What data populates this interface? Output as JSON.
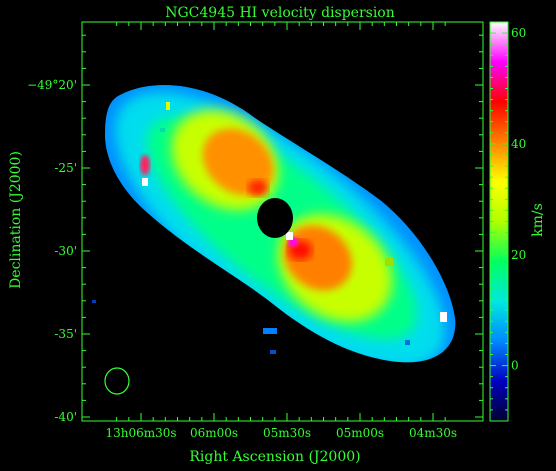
{
  "chart_data": {
    "type": "heatmap",
    "title": "NGC4945   HI velocity dispersion",
    "xlabel": "Right Ascension (J2000)",
    "ylabel": "Declination (J2000)",
    "colorbar_label": "km/s",
    "x_ticks": [
      {
        "label": "13h06m30s",
        "ra_sec": 390
      },
      {
        "label": "06m00s",
        "ra_sec": 360
      },
      {
        "label": "05m30s",
        "ra_sec": 330
      },
      {
        "label": "05m00s",
        "ra_sec": 300
      },
      {
        "label": "04m30s",
        "ra_sec": 270
      }
    ],
    "y_ticks": [
      {
        "label": "−49°20'",
        "dec_arcmin": -20
      },
      {
        "label": "-25'",
        "dec_arcmin": -25
      },
      {
        "label": "-30'",
        "dec_arcmin": -30
      },
      {
        "label": "-35'",
        "dec_arcmin": -35
      },
      {
        "label": "-40'",
        "dec_arcmin": -40
      }
    ],
    "colorbar_ticks": [
      0,
      20,
      40,
      60
    ],
    "colorbar_range": [
      -10,
      62
    ],
    "colorbar_stops": [
      "#000030",
      "#0000c0",
      "#0088ff",
      "#00e8e0",
      "#00ff60",
      "#b0ff00",
      "#ffff00",
      "#ff8000",
      "#ff0000",
      "#ff00ff",
      "#ffffff"
    ],
    "axis_color": "#33ff33"
  }
}
